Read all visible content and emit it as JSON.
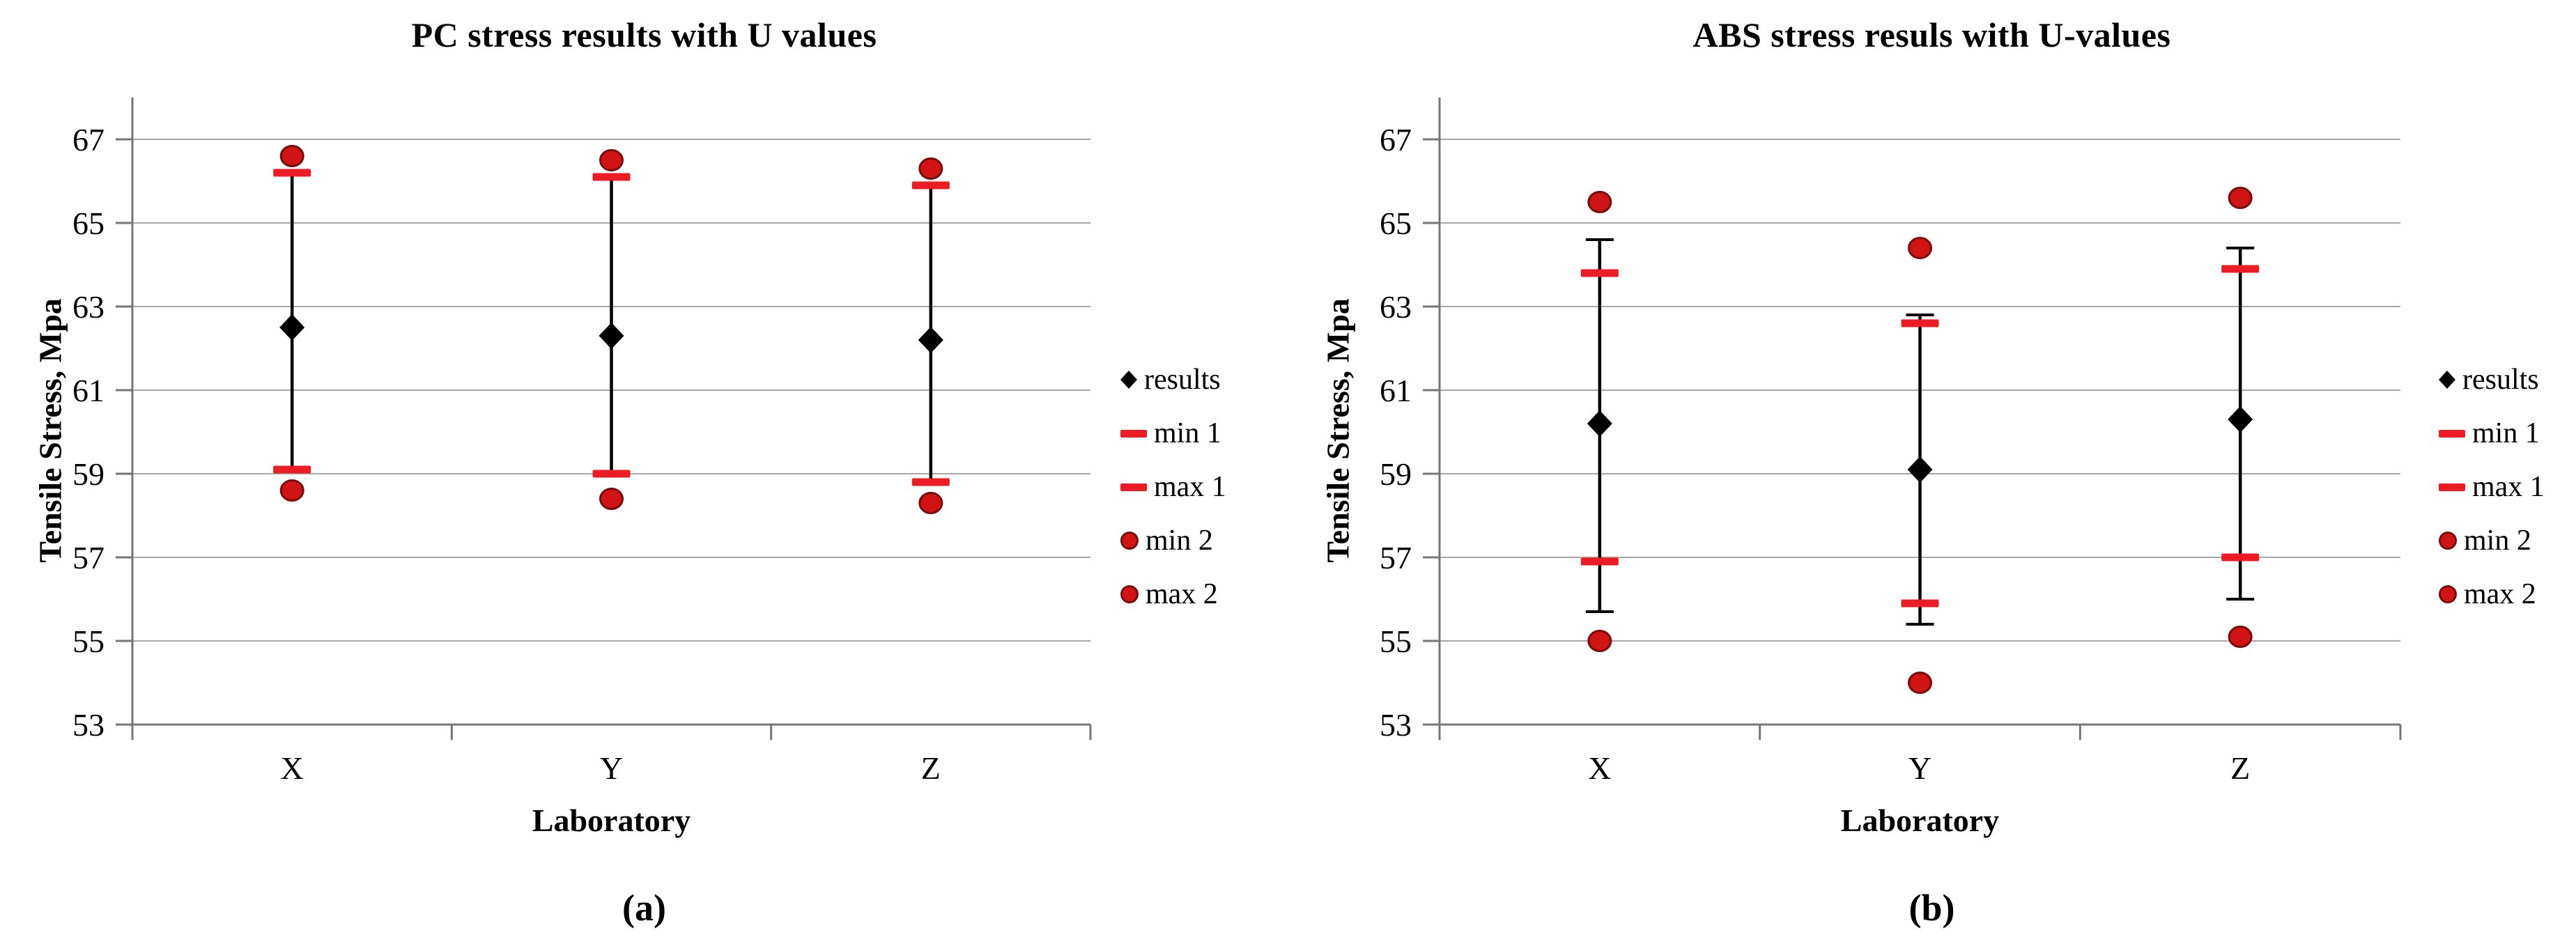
{
  "page": {
    "background": "#ffffff"
  },
  "colors": {
    "gridline": "#a8a8a8",
    "axis": "#767676",
    "error_bar": "#000000",
    "result_diamond": "#000000",
    "minmax_dash": "#ed1c24",
    "minmax_circle_fill": "#d01414",
    "minmax_circle_ring": "#7a0b0b",
    "text": "#000000"
  },
  "chart_data": "see charts array",
  "charts": [
    {
      "id": "a",
      "type": "scatter",
      "title": "PC stress results with U values",
      "caption": "(a)",
      "ylabel": "Tensile Stress, Mpa",
      "xlabel": "Laboratory",
      "categories": [
        "X",
        "Y",
        "Z"
      ],
      "y_ticks": [
        67,
        65,
        63,
        61,
        59,
        57,
        55,
        53
      ],
      "ylim": [
        53,
        67
      ],
      "grid": "horizontal",
      "legend_position": "right",
      "legend": [
        {
          "label": "results",
          "marker": "diamond"
        },
        {
          "label": "min 1",
          "marker": "dash"
        },
        {
          "label": "max 1",
          "marker": "dash"
        },
        {
          "label": "min 2",
          "marker": "circle"
        },
        {
          "label": "max 2",
          "marker": "circle"
        }
      ],
      "series": {
        "results": [
          62.5,
          62.3,
          62.2
        ],
        "min1": [
          59.1,
          59.0,
          58.8
        ],
        "max1": [
          66.2,
          66.1,
          65.9
        ],
        "min2": [
          58.6,
          58.4,
          58.3
        ],
        "max2": [
          66.6,
          66.5,
          66.3
        ],
        "err_low": [
          59.1,
          59.0,
          58.8
        ],
        "err_high": [
          66.2,
          66.1,
          65.9
        ]
      }
    },
    {
      "id": "b",
      "type": "scatter",
      "title": "ABS stress resuls with U-values",
      "caption": "(b)",
      "ylabel": "Tensile Stress, Mpa",
      "xlabel": "Laboratory",
      "categories": [
        "X",
        "Y",
        "Z"
      ],
      "y_ticks": [
        67,
        65,
        63,
        61,
        59,
        57,
        55,
        53
      ],
      "ylim": [
        53,
        67
      ],
      "grid": "horizontal",
      "legend_position": "right",
      "legend": [
        {
          "label": "results",
          "marker": "diamond"
        },
        {
          "label": "min 1",
          "marker": "dash"
        },
        {
          "label": "max 1",
          "marker": "dash"
        },
        {
          "label": "min 2",
          "marker": "circle"
        },
        {
          "label": "max 2",
          "marker": "circle"
        }
      ],
      "series": {
        "results": [
          60.2,
          59.1,
          60.3
        ],
        "min1": [
          56.9,
          55.9,
          57.0
        ],
        "max1": [
          63.8,
          62.6,
          63.9
        ],
        "min2": [
          55.0,
          54.0,
          55.1
        ],
        "max2": [
          65.5,
          64.4,
          65.6
        ],
        "err_low": [
          55.7,
          55.4,
          56.0
        ],
        "err_high": [
          64.6,
          62.8,
          64.4
        ]
      }
    }
  ]
}
